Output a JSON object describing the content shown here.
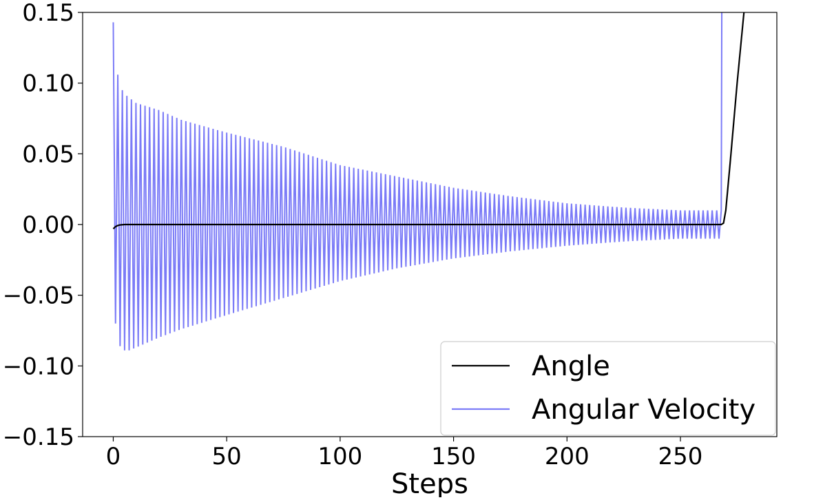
{
  "chart_data": {
    "type": "line",
    "title": "",
    "xlabel": "Steps",
    "ylabel": "",
    "xlim": [
      -13.5,
      292.5
    ],
    "ylim": [
      -0.15,
      0.15
    ],
    "xticks": [
      0,
      50,
      100,
      150,
      200,
      250
    ],
    "xtick_labels": [
      "0",
      "50",
      "100",
      "150",
      "200",
      "250"
    ],
    "yticks": [
      -0.15,
      -0.1,
      -0.05,
      0.0,
      0.05,
      0.1,
      0.15
    ],
    "ytick_labels": [
      "−0.15",
      "−0.10",
      "−0.05",
      "0.00",
      "0.05",
      "0.10",
      "0.15"
    ],
    "grid": false,
    "legend_position": "lower-right",
    "series": [
      {
        "name": "Angle",
        "color": "#000000",
        "description_points": {
          "x": [
            0,
            1,
            2,
            3,
            5,
            10,
            50,
            100,
            150,
            200,
            250,
            268,
            269,
            270,
            272,
            275,
            278,
            280
          ],
          "y": [
            -0.003,
            -0.0015,
            -0.0007,
            -0.0003,
            0.0,
            0.0,
            0.0,
            0.0,
            0.0,
            0.0,
            0.0,
            0.0,
            0.001,
            0.01,
            0.045,
            0.1,
            0.15,
            0.18
          ]
        }
      },
      {
        "name": "Angular Velocity",
        "color": "#7b7bf7",
        "oscillation": {
          "x_start": 0,
          "x_end": 268,
          "period_steps": 2,
          "peaks": [
            [
              0,
              0.143
            ],
            [
              2,
              0.106
            ],
            [
              4,
              0.095
            ],
            [
              6,
              0.091
            ],
            [
              10,
              0.086
            ],
            [
              20,
              0.081
            ],
            [
              30,
              0.074
            ],
            [
              50,
              0.065
            ],
            [
              75,
              0.055
            ],
            [
              100,
              0.042
            ],
            [
              125,
              0.034
            ],
            [
              150,
              0.026
            ],
            [
              175,
              0.02
            ],
            [
              200,
              0.015
            ],
            [
              225,
              0.012
            ],
            [
              250,
              0.01
            ],
            [
              268,
              0.01
            ]
          ],
          "troughs": [
            [
              1,
              -0.07
            ],
            [
              3,
              -0.086
            ],
            [
              5,
              -0.089
            ],
            [
              7,
              -0.089
            ],
            [
              10,
              -0.087
            ],
            [
              20,
              -0.08
            ],
            [
              30,
              -0.074
            ],
            [
              50,
              -0.064
            ],
            [
              75,
              -0.052
            ],
            [
              100,
              -0.04
            ],
            [
              125,
              -0.031
            ],
            [
              150,
              -0.024
            ],
            [
              175,
              -0.019
            ],
            [
              200,
              -0.015
            ],
            [
              225,
              -0.012
            ],
            [
              250,
              -0.01
            ],
            [
              268,
              -0.01
            ]
          ],
          "final_spike_x": 269,
          "final_spike_y": 0.6
        }
      }
    ]
  }
}
